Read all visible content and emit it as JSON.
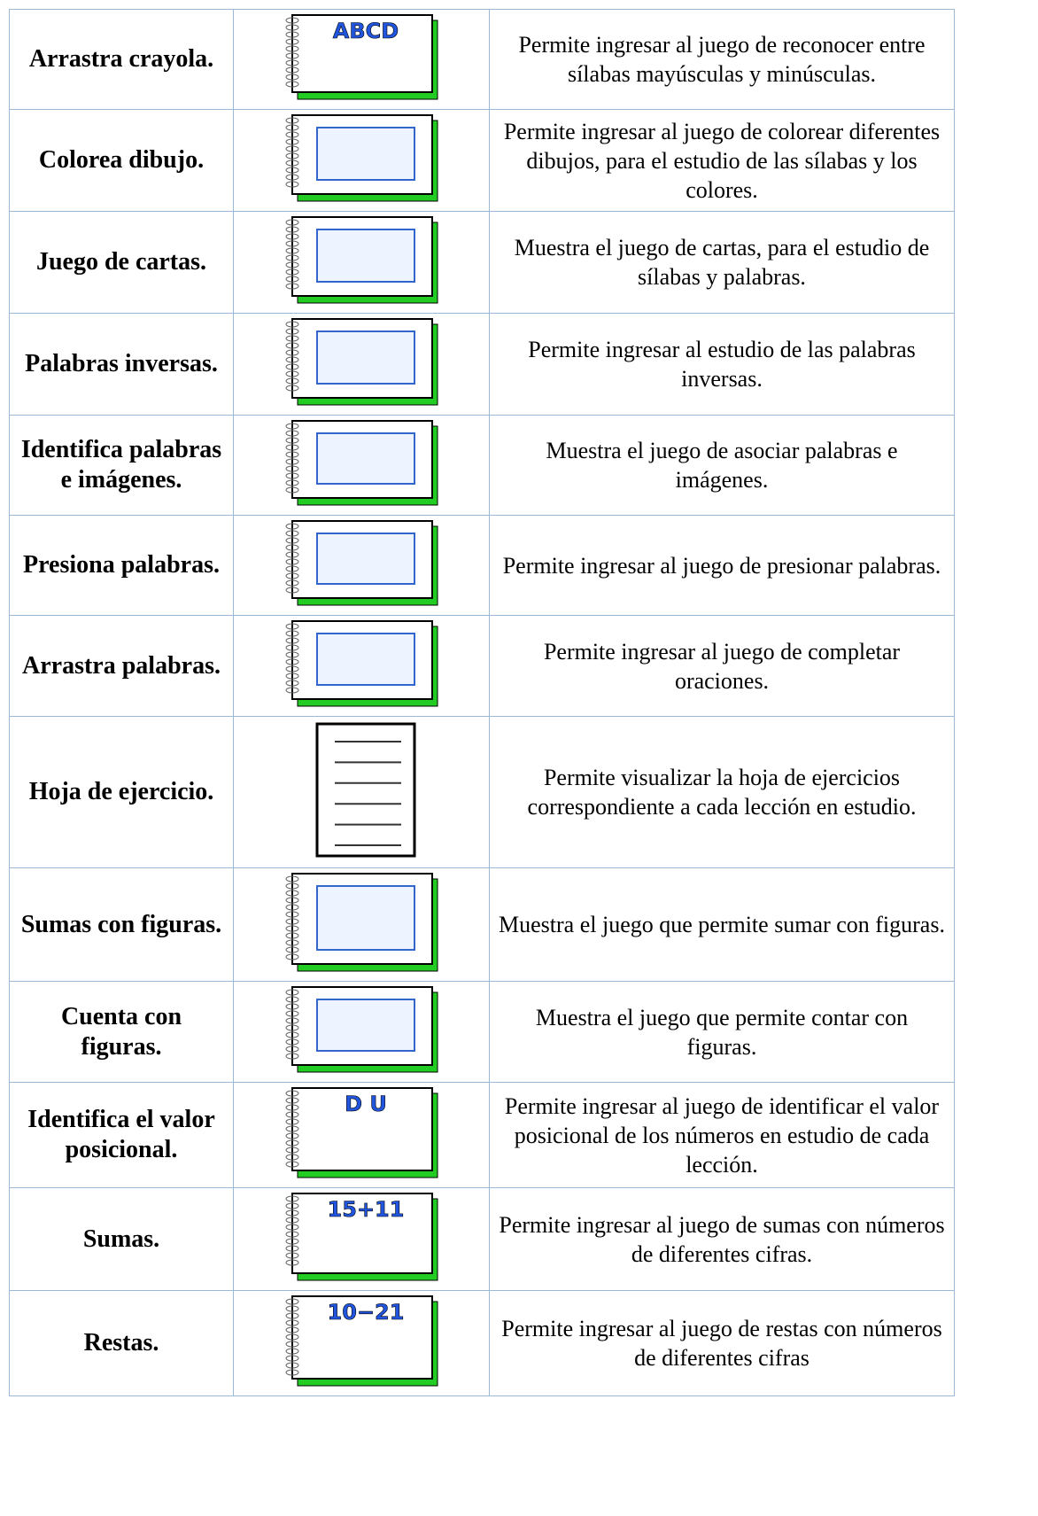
{
  "table": {
    "rows": [
      {
        "name": "Arrastra crayola.",
        "icon_text": "ABCD",
        "description": "Permite ingresar al juego de reconocer entre sílabas mayúsculas y minúsculas."
      },
      {
        "name": "Colorea dibujo.",
        "description": "Permite ingresar al juego de colorear diferentes dibujos, para el estudio de las sílabas y los colores."
      },
      {
        "name": "Juego de cartas.",
        "description": "Muestra el juego de cartas, para el estudio de sílabas y palabras."
      },
      {
        "name": "Palabras inversas.",
        "description": "Permite ingresar al estudio de las palabras inversas."
      },
      {
        "name": "Identifica palabras e imágenes.",
        "description": "Muestra el juego de asociar palabras e imágenes."
      },
      {
        "name": "Presiona palabras.",
        "description": "Permite ingresar al juego de presionar palabras."
      },
      {
        "name": "Arrastra palabras.",
        "description": "Permite ingresar al juego de completar oraciones."
      },
      {
        "name": "Hoja de ejercicio.",
        "description": "Permite visualizar la hoja de ejercicios correspondiente a cada lección en estudio."
      },
      {
        "name": "Sumas con figuras.",
        "description": "Muestra el juego que permite sumar con figuras."
      },
      {
        "name": "Cuenta con figuras.",
        "description": "Muestra el juego que permite contar con figuras."
      },
      {
        "name": "Identifica el valor posicional.",
        "icon_text": "D U",
        "description": "Permite ingresar al juego de identificar el valor posicional de los números en estudio de cada lección."
      },
      {
        "name": "Sumas.",
        "icon_text": "15+11",
        "description": "Permite ingresar al juego de sumas con números de diferentes cifras."
      },
      {
        "name": "Restas.",
        "icon_text": "10−21",
        "description": "Permite ingresar al juego de restas con números de diferentes cifras"
      }
    ]
  }
}
